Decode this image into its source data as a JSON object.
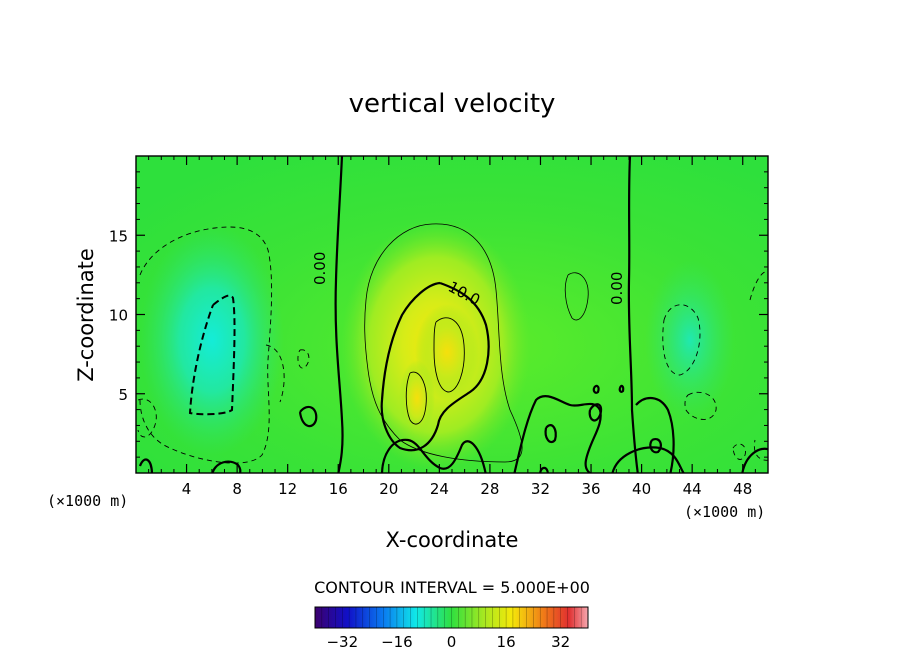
{
  "title": "vertical velocity",
  "x_unit": "(×1000 m)",
  "x_unit_right": "(×1000 m)",
  "contour_interval_text": "CONTOUR INTERVAL = 5.000E+00",
  "colors": {
    "background": "#ffffff",
    "field_base": "#2fe43a",
    "zero_contour": "#000000"
  },
  "chart_data": {
    "type": "heatmap",
    "title": "vertical velocity",
    "xlabel": "X-coordinate",
    "ylabel": "Z-coordinate",
    "xlim": [
      0,
      50
    ],
    "ylim": [
      0,
      20
    ],
    "x_ticks": [
      4,
      8,
      12,
      16,
      20,
      24,
      28,
      32,
      36,
      40,
      44,
      48
    ],
    "y_ticks": [
      5,
      10,
      15
    ],
    "contour_interval": 5.0,
    "contour_labels": [
      {
        "text": "0.00",
        "x": 15.7,
        "z": 12.7
      },
      {
        "text": "10.0",
        "x": 24.8,
        "z": 11.3
      },
      {
        "text": "0.00",
        "x": 39.0,
        "z": 11.9
      }
    ],
    "features": [
      {
        "kind": "downdraft",
        "x": 6.3,
        "z": 7.0,
        "approx_min": -12
      },
      {
        "kind": "updraft",
        "x": 24.8,
        "z": 7.5,
        "approx_max": 15
      },
      {
        "kind": "updraft",
        "x": 22.3,
        "z": 4.8,
        "approx_max": 14
      },
      {
        "kind": "downdraft",
        "x": 43.5,
        "z": 8.0,
        "approx_min": -6
      }
    ],
    "colorbar": {
      "ticks": [
        -32,
        -16,
        0,
        16,
        32
      ],
      "range": [
        -40,
        40
      ],
      "colormap": "rainbow"
    }
  }
}
